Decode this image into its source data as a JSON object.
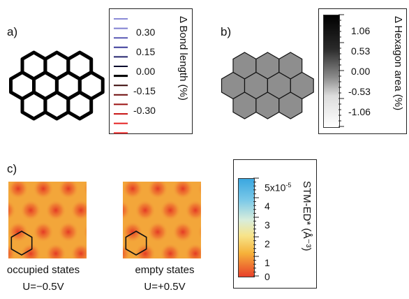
{
  "panel_a": {
    "label": "a)",
    "colorbar": {
      "axis_label": "Δ Bond length (%)",
      "ticks": [
        "0.30",
        "0.15",
        "0.00",
        "-0.15",
        "-0.30"
      ],
      "colors": [
        "#8a8ad6",
        "#7f7fd0",
        "#5959b4",
        "#3c3c9a",
        "#24246e",
        "#0a0a2a",
        "#000000",
        "#3a0808",
        "#6e0c0c",
        "#9a1010",
        "#c81818",
        "#e42020",
        "#f43a3a"
      ]
    }
  },
  "panel_b": {
    "label": "b)",
    "colorbar": {
      "axis_label": "Δ Hexagon area (%)",
      "ticks": [
        "1.06",
        "0.53",
        "0.00",
        "-0.53",
        "-1.06"
      ]
    },
    "hexagon_fill": "#8e8e8e"
  },
  "panel_c": {
    "label": "c)",
    "maps": [
      {
        "caption_line1": "occupied states",
        "caption_line2": "U=−0.5V"
      },
      {
        "caption_line1": "empty states",
        "caption_line2": "U=+0.5V"
      }
    ],
    "colorbar": {
      "axis_label": "STM-ED* (Å⁻³)",
      "ticks": [
        "5x10",
        "4",
        "3",
        "2",
        "1",
        "0"
      ],
      "top_exponent": "-5"
    },
    "map_colors": {
      "background": "#f3a63a",
      "spot": "#e43a24"
    }
  }
}
